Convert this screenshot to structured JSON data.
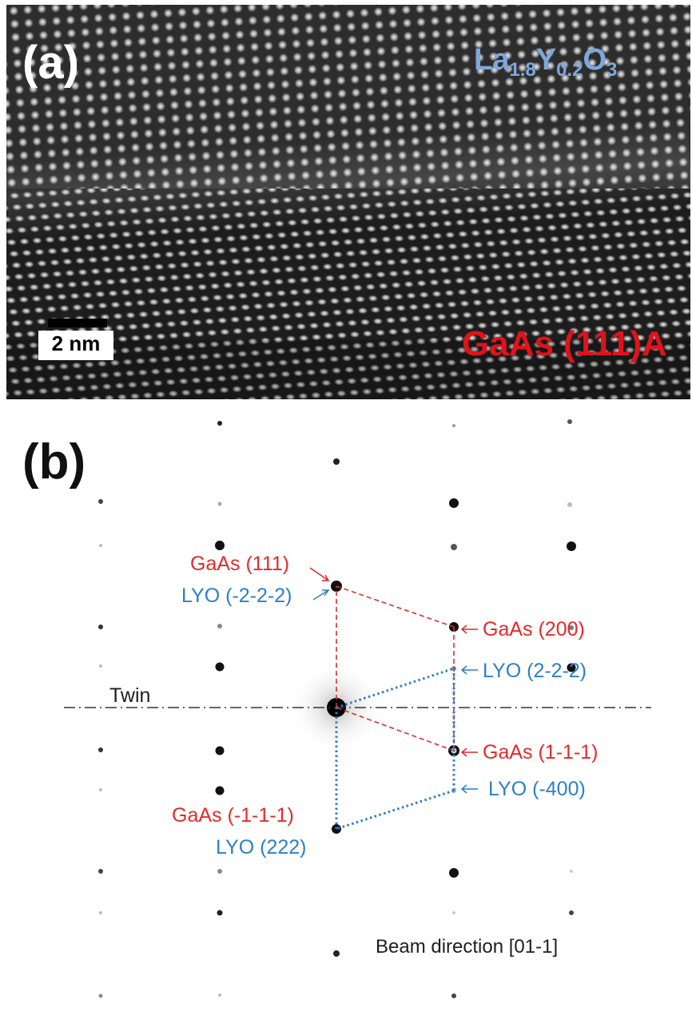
{
  "panel_a": {
    "label": "(a)",
    "top_layer_label": {
      "base": "La",
      "sub1": "1.8",
      "mid": "Y",
      "sub2": "0.2",
      "end": "O",
      "sub3": "3"
    },
    "substrate_label": "GaAs (111)A",
    "scale_bar": "2 nm"
  },
  "panel_b": {
    "label": "(b)",
    "twin_label": "Twin",
    "beam_direction": "Beam direction [01-1]",
    "annotations": {
      "gaas_111": "GaAs (111)",
      "lyo_m2m2m2": "LYO (-2-2-2)",
      "gaas_200": "GaAs (200)",
      "lyo_2m2m2": "LYO (2-2-2)",
      "gaas_1m1m1": "GaAs (1-1-1)",
      "lyo_m400": "LYO (-400)",
      "gaas_m1m1m1": "GaAs (-1-1-1)",
      "lyo_222": "LYO (222)"
    },
    "colors": {
      "gaas": "#e42a2a",
      "lyo": "#2c7fc6",
      "twin_line": "#333333"
    }
  }
}
